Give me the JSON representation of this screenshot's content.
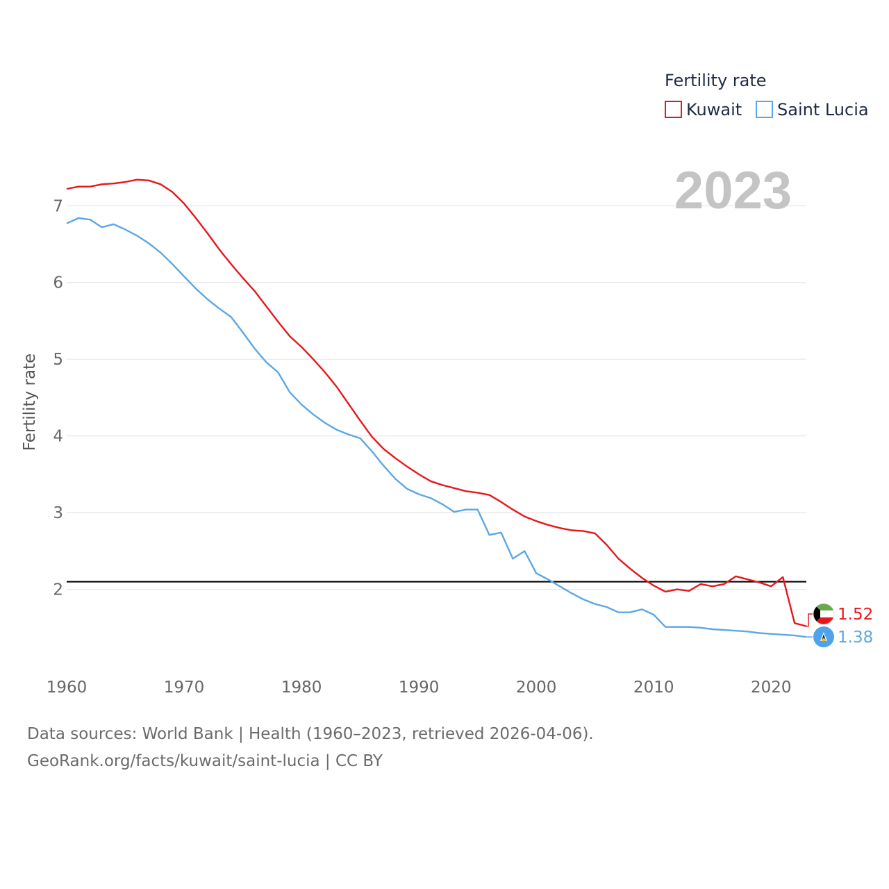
{
  "chart_data": {
    "type": "line",
    "title": "Fertility rate",
    "year_label": "2023",
    "xlabel": "",
    "ylabel": "Fertility rate",
    "xlim": [
      1960,
      2023
    ],
    "ylim": [
      1.1,
      7.6
    ],
    "x_ticks": [
      1960,
      1970,
      1980,
      1990,
      2000,
      2010,
      2020
    ],
    "y_ticks": [
      2,
      3,
      4,
      5,
      6,
      7
    ],
    "reference_line": {
      "y": 2.1
    },
    "x": [
      1960,
      1961,
      1962,
      1963,
      1964,
      1965,
      1966,
      1967,
      1968,
      1969,
      1970,
      1971,
      1972,
      1973,
      1974,
      1975,
      1976,
      1977,
      1978,
      1979,
      1980,
      1981,
      1982,
      1983,
      1984,
      1985,
      1986,
      1987,
      1988,
      1989,
      1990,
      1991,
      1992,
      1993,
      1994,
      1995,
      1996,
      1997,
      1998,
      1999,
      2000,
      2001,
      2002,
      2003,
      2004,
      2005,
      2006,
      2007,
      2008,
      2009,
      2010,
      2011,
      2012,
      2013,
      2014,
      2015,
      2016,
      2017,
      2018,
      2019,
      2020,
      2021,
      2022,
      2023
    ],
    "series": [
      {
        "name": "Kuwait",
        "color": "#e8161b",
        "end_label": "1.52",
        "flag": "kuwait-flag",
        "values": [
          7.22,
          7.25,
          7.25,
          7.28,
          7.29,
          7.31,
          7.34,
          7.33,
          7.28,
          7.18,
          7.03,
          6.84,
          6.64,
          6.43,
          6.24,
          6.06,
          5.89,
          5.69,
          5.49,
          5.3,
          5.16,
          5.0,
          4.83,
          4.64,
          4.42,
          4.2,
          3.99,
          3.83,
          3.71,
          3.6,
          3.5,
          3.41,
          3.36,
          3.32,
          3.28,
          3.26,
          3.23,
          3.14,
          3.04,
          2.95,
          2.89,
          2.84,
          2.8,
          2.77,
          2.76,
          2.73,
          2.58,
          2.4,
          2.27,
          2.15,
          2.05,
          1.97,
          2.0,
          1.98,
          2.07,
          2.04,
          2.07,
          2.17,
          2.13,
          2.09,
          2.04,
          2.16,
          1.56,
          1.52
        ]
      },
      {
        "name": "Saint Lucia",
        "color": "#5ba7e5",
        "end_label": "1.38",
        "flag": "saint-lucia-flag",
        "values": [
          6.77,
          6.84,
          6.82,
          6.72,
          6.76,
          6.69,
          6.61,
          6.51,
          6.39,
          6.24,
          6.08,
          5.92,
          5.78,
          5.66,
          5.55,
          5.35,
          5.14,
          4.96,
          4.83,
          4.57,
          4.41,
          4.28,
          4.17,
          4.08,
          4.02,
          3.97,
          3.8,
          3.61,
          3.44,
          3.31,
          3.24,
          3.19,
          3.11,
          3.01,
          3.04,
          3.04,
          2.71,
          2.74,
          2.4,
          2.5,
          2.21,
          2.13,
          2.04,
          1.95,
          1.87,
          1.81,
          1.77,
          1.7,
          1.7,
          1.74,
          1.67,
          1.51,
          1.51,
          1.51,
          1.5,
          1.48,
          1.47,
          1.46,
          1.45,
          1.43,
          1.42,
          1.41,
          1.4,
          1.38
        ]
      }
    ],
    "legend_position": "top-right"
  },
  "footer": {
    "line1": "Data sources: World Bank | Health (1960–2023, retrieved 2026-04-06).",
    "line2": "GeoRank.org/facts/kuwait/saint-lucia | CC BY"
  }
}
